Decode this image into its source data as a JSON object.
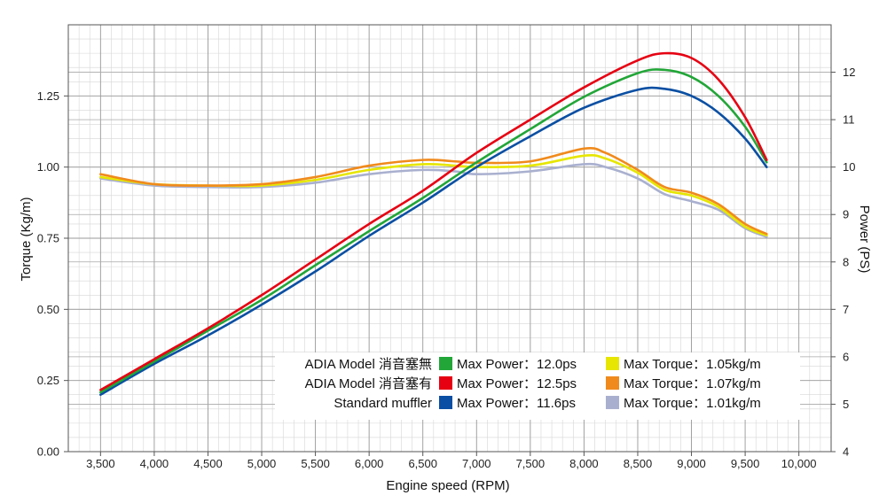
{
  "chart_data": {
    "type": "line",
    "xlabel": "Engine speed (RPM)",
    "ylabel": "Torque (Kg/m)",
    "y2label": "Power (PS)",
    "xlim": [
      3200,
      10300
    ],
    "ylim": [
      0,
      1.5
    ],
    "y2lim": [
      4,
      13
    ],
    "x_ticks": [
      3500,
      4000,
      4500,
      5000,
      5500,
      6000,
      6500,
      7000,
      7500,
      8000,
      8500,
      9000,
      9500,
      10000
    ],
    "x_tick_labels": [
      "3,500",
      "4,000",
      "4,500",
      "5,000",
      "5,500",
      "6,000",
      "6,500",
      "7,000",
      "7,500",
      "8,000",
      "8,500",
      "9,000",
      "9,500",
      "10,000"
    ],
    "y_ticks": [
      0,
      0.25,
      0.5,
      0.75,
      1.0,
      1.25
    ],
    "y_tick_labels": [
      "0.00",
      "0.25",
      "0.50",
      "0.75",
      "1.00",
      "1.25"
    ],
    "y2_ticks": [
      4,
      5,
      6,
      7,
      8,
      9,
      10,
      11,
      12
    ],
    "y2_tick_labels": [
      "4",
      "5",
      "6",
      "7",
      "8",
      "9",
      "10",
      "11",
      "12"
    ],
    "grid": true,
    "series": [
      {
        "label": "ADIA Model 消音塞有 Max Power",
        "axis": "right",
        "color": "#e60012",
        "x": [
          3500,
          4000,
          4500,
          5000,
          5500,
          6000,
          6500,
          7000,
          7500,
          8000,
          8500,
          8750,
          9000,
          9250,
          9500,
          9700
        ],
        "y": [
          5.3,
          5.95,
          6.6,
          7.3,
          8.05,
          8.8,
          9.5,
          10.3,
          11.0,
          11.68,
          12.25,
          12.4,
          12.3,
          11.85,
          11.05,
          10.15
        ]
      },
      {
        "label": "ADIA Model 消音塞無 Max Power",
        "axis": "right",
        "color": "#22a638",
        "x": [
          3500,
          4000,
          4500,
          5000,
          5500,
          6000,
          6500,
          7000,
          7500,
          8000,
          8500,
          8750,
          9000,
          9250,
          9500,
          9700
        ],
        "y": [
          5.25,
          5.9,
          6.55,
          7.2,
          7.93,
          8.65,
          9.35,
          10.1,
          10.8,
          11.48,
          11.98,
          12.05,
          11.9,
          11.5,
          10.85,
          10.1
        ]
      },
      {
        "label": "Standard muffler Max Power",
        "axis": "right",
        "color": "#0a4fa3",
        "x": [
          3500,
          4000,
          4500,
          5000,
          5500,
          6000,
          6500,
          7000,
          7500,
          8000,
          8500,
          8750,
          9000,
          9250,
          9500,
          9700
        ],
        "y": [
          5.2,
          5.85,
          6.45,
          7.1,
          7.8,
          8.55,
          9.25,
          10.0,
          10.65,
          11.25,
          11.63,
          11.65,
          11.5,
          11.15,
          10.6,
          10.0
        ]
      },
      {
        "label": "ADIA Model 消音塞有 Max Torque",
        "axis": "left",
        "color": "#f08a1c",
        "x": [
          3500,
          4000,
          4500,
          5000,
          5500,
          6000,
          6500,
          6800,
          7000,
          7500,
          8000,
          8200,
          8500,
          8750,
          9000,
          9250,
          9500,
          9700
        ],
        "y": [
          0.975,
          0.94,
          0.935,
          0.94,
          0.965,
          1.005,
          1.025,
          1.02,
          1.015,
          1.02,
          1.065,
          1.05,
          0.99,
          0.93,
          0.91,
          0.87,
          0.8,
          0.765
        ]
      },
      {
        "label": "ADIA Model 消音塞無 Max Torque",
        "axis": "left",
        "color": "#e6e600",
        "x": [
          3500,
          4000,
          4500,
          5000,
          5500,
          6000,
          6500,
          6800,
          7000,
          7500,
          8000,
          8200,
          8500,
          8750,
          9000,
          9250,
          9500,
          9700
        ],
        "y": [
          0.965,
          0.94,
          0.935,
          0.935,
          0.955,
          0.99,
          1.01,
          1.005,
          1.0,
          1.005,
          1.04,
          1.03,
          0.98,
          0.92,
          0.9,
          0.86,
          0.79,
          0.76
        ]
      },
      {
        "label": "Standard muffler Max Torque",
        "axis": "left",
        "color": "#a9b0cf",
        "x": [
          3500,
          4000,
          4500,
          5000,
          5500,
          6000,
          6500,
          6800,
          7000,
          7500,
          8000,
          8200,
          8500,
          8750,
          9000,
          9250,
          9500,
          9700
        ],
        "y": [
          0.96,
          0.935,
          0.93,
          0.93,
          0.945,
          0.975,
          0.99,
          0.985,
          0.975,
          0.985,
          1.01,
          1.0,
          0.96,
          0.905,
          0.88,
          0.85,
          0.785,
          0.755
        ]
      }
    ],
    "legend": {
      "position": "bottom-right",
      "rows": [
        {
          "model": "ADIA Model 消音塞無",
          "power_color": "#22a638",
          "power_text": "Max Power：12.0ps",
          "torque_color": "#e6e600",
          "torque_text": "Max Torque：1.05kg/m"
        },
        {
          "model": "ADIA Model 消音塞有",
          "power_color": "#e60012",
          "power_text": "Max Power：12.5ps",
          "torque_color": "#f08a1c",
          "torque_text": "Max Torque：1.07kg/m"
        },
        {
          "model": "Standard muffler",
          "power_color": "#0a4fa3",
          "power_text": "Max Power：11.6ps",
          "torque_color": "#a9b0cf",
          "torque_text": "Max Torque：1.01kg/m"
        }
      ]
    }
  }
}
